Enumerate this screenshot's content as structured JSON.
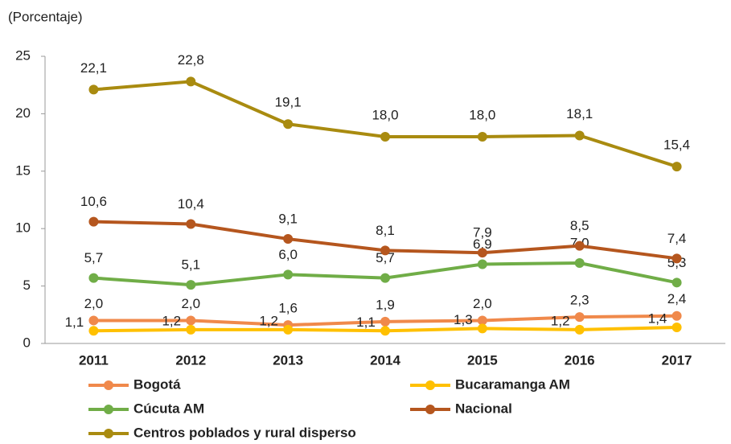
{
  "chart_data": {
    "type": "line",
    "y_label": "(Porcentaje)",
    "categories": [
      "2011",
      "2012",
      "2013",
      "2014",
      "2015",
      "2016",
      "2017"
    ],
    "ylim": [
      0,
      25
    ],
    "yticks": [
      0,
      5,
      10,
      15,
      20,
      25
    ],
    "grid": false,
    "series": [
      {
        "name": "Bogotá",
        "color": "#f0894b",
        "values": [
          2.0,
          2.0,
          1.6,
          1.9,
          2.0,
          2.3,
          2.4
        ],
        "value_labels": [
          "2,0",
          "2,0",
          "1,6",
          "1,9",
          "2,0",
          "2,3",
          "2,4"
        ]
      },
      {
        "name": "Bucaramanga AM",
        "color": "#ffc000",
        "values": [
          1.1,
          1.2,
          1.2,
          1.1,
          1.3,
          1.2,
          1.4
        ],
        "value_labels": [
          "1,1",
          "1,2",
          "1,2",
          "1,1",
          "1,3",
          "1,2",
          "1,4"
        ]
      },
      {
        "name": "Cúcuta AM",
        "color": "#70ad47",
        "values": [
          5.7,
          5.1,
          6.0,
          5.7,
          6.9,
          7.0,
          5.3
        ],
        "value_labels": [
          "5,7",
          "5,1",
          "6,0",
          "5,7",
          "6,9",
          "7,0",
          "5,3"
        ]
      },
      {
        "name": "Nacional",
        "color": "#b5561e",
        "values": [
          10.6,
          10.4,
          9.1,
          8.1,
          7.9,
          8.5,
          7.4
        ],
        "value_labels": [
          "10,6",
          "10,4",
          "9,1",
          "8,1",
          "7,9",
          "8,5",
          "7,4"
        ]
      },
      {
        "name": "Centros poblados y rural disperso",
        "color": "#a98b10",
        "values": [
          22.1,
          22.8,
          19.1,
          18.0,
          18.0,
          18.1,
          15.4
        ],
        "value_labels": [
          "22,1",
          "22,8",
          "19,1",
          "18,0",
          "18,0",
          "18,1",
          "15,4"
        ]
      }
    ]
  }
}
